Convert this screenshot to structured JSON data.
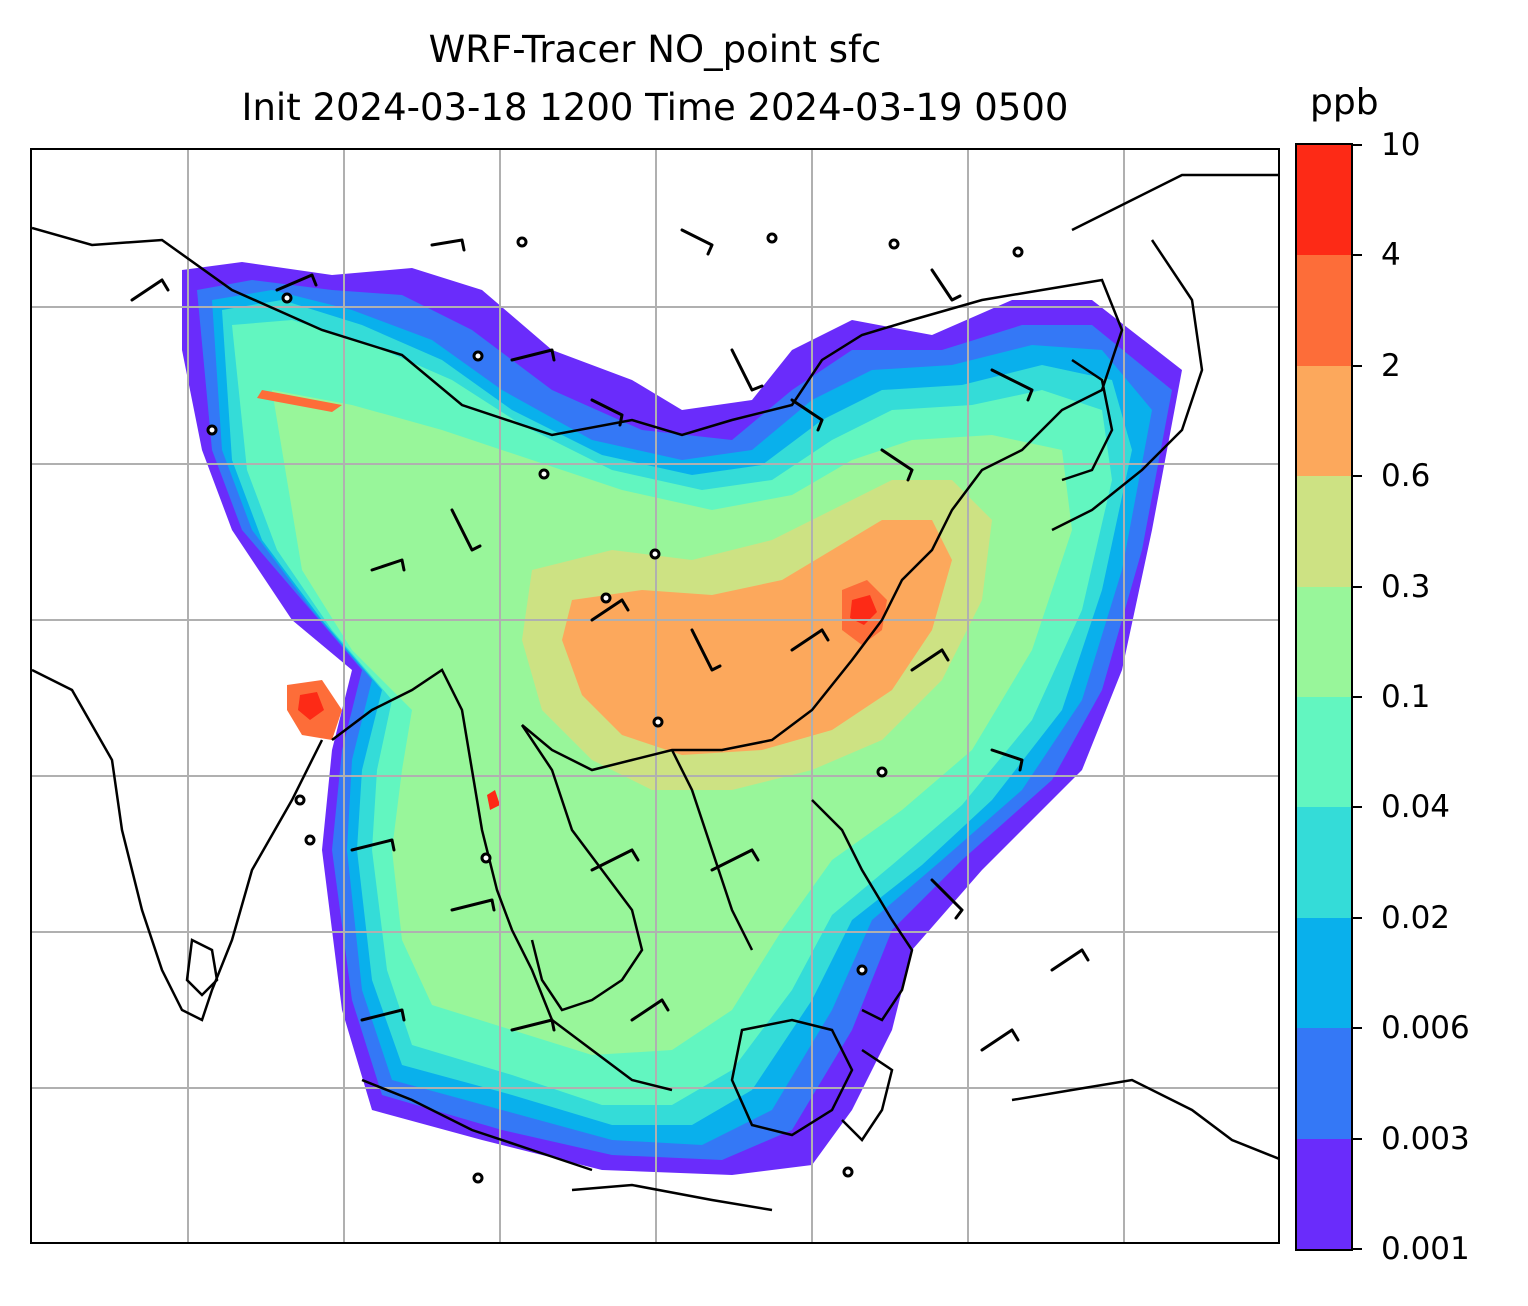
{
  "title": {
    "line1": "WRF-Tracer NO_point sfc",
    "line2": "Init 2024-03-18 1200 Time 2024-03-19 0500"
  },
  "colorbar": {
    "unit": "ppb",
    "levels": [
      "0.001",
      "0.003",
      "0.006",
      "0.02",
      "0.04",
      "0.1",
      "0.3",
      "0.6",
      "2",
      "4",
      "10"
    ],
    "colors": [
      "#6a2cfb",
      "#3478f6",
      "#09b0ec",
      "#34dcd8",
      "#62f6c0",
      "#98f69a",
      "#cde283",
      "#fca85c",
      "#fd6d39",
      "#fd2a16"
    ]
  },
  "map": {
    "gridlines": "on",
    "coastlines": "on",
    "wind_barbs": "on",
    "field": "NO_point surface tracer concentration"
  }
}
